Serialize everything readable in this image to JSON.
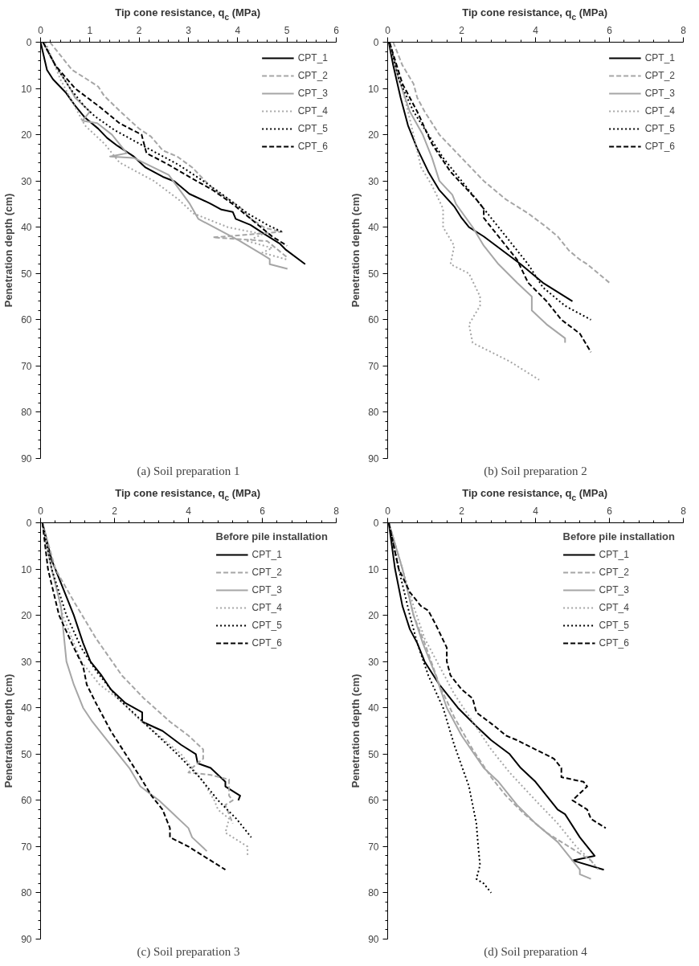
{
  "chart_data": [
    {
      "type": "line",
      "xlabel": "Tip cone resistance, q$_{c}$ (MPa)",
      "ylabel": "Penetration depth (cm)",
      "xlim": [
        0,
        6
      ],
      "xticks": [
        0,
        1,
        2,
        3,
        4,
        5,
        6
      ],
      "ylim": [
        90,
        0
      ],
      "yticks": [
        0,
        10,
        20,
        30,
        40,
        50,
        60,
        70,
        80,
        90
      ],
      "legend": "top right",
      "annotations": [
        "(a) Soil preparation 1"
      ],
      "series": [
        {
          "name": "CPT_1",
          "color": "#000000",
          "line_style": "solid",
          "x": [
            0.0,
            0.13,
            0.25,
            0.52,
            0.7,
            0.9,
            1.17,
            1.35,
            1.56,
            1.89,
            2.13,
            2.48,
            2.72,
            3.02,
            3.43,
            3.67,
            3.9,
            3.96,
            4.26,
            4.56,
            4.86,
            4.98,
            5.37
          ],
          "values": [
            0,
            6,
            8,
            11,
            13.7,
            16.3,
            18.7,
            20.7,
            22.4,
            24.7,
            27.1,
            29.1,
            30.1,
            32.8,
            34.8,
            36.2,
            36.7,
            38.2,
            39.5,
            41.6,
            43.6,
            44.9,
            48
          ]
        },
        {
          "name": "CPT_2",
          "color": "#a6a6a6",
          "line_style": "dashed",
          "x": [
            0.19,
            0.64,
            0.88,
            1.17,
            1.29,
            1.65,
            2.0,
            2.24,
            2.48,
            2.77,
            3.08,
            3.32,
            3.55,
            4.03,
            4.27,
            4.56,
            4.9,
            3.5,
            4.6,
            5.0
          ],
          "values": [
            0,
            6,
            7.6,
            9.6,
            11.6,
            15.3,
            18.7,
            20.4,
            23.4,
            24.7,
            27.1,
            29.8,
            32.1,
            35.5,
            38.2,
            40.2,
            41,
            42.2,
            43,
            46.5
          ]
        },
        {
          "name": "CPT_3",
          "color": "#a6a6a6",
          "line_style": "solid",
          "x": [
            0.05,
            0.3,
            0.6,
            0.7,
            1.0,
            0.85,
            1.15,
            1.45,
            1.75,
            1.41,
            1.89,
            2.6,
            3.02,
            3.2,
            4.03,
            4.5,
            4.65,
            4.65,
            5.01
          ],
          "values": [
            0,
            5,
            10,
            12,
            15,
            17,
            17.5,
            20,
            24,
            24.7,
            25,
            28.7,
            34.8,
            38.2,
            42.9,
            45.9,
            46.9,
            48,
            49
          ]
        },
        {
          "name": "CPT_4",
          "color": "#a6a6a6",
          "line_style": "dotted",
          "x": [
            0.1,
            0.4,
            0.65,
            0.9,
            1.3,
            1.6,
            2.3,
            2.8,
            3.1,
            3.8,
            4.5,
            4.2,
            4.7,
            4.5,
            5.0
          ],
          "values": [
            0,
            8,
            13,
            18,
            22,
            26,
            30,
            34,
            37,
            40,
            41.5,
            43,
            44.5,
            45.5,
            47
          ]
        },
        {
          "name": "CPT_5",
          "color": "#000000",
          "line_style": "dotted",
          "x": [
            0.05,
            0.3,
            0.6,
            0.9,
            1.1,
            1.5,
            2.1,
            2.8,
            3.3,
            3.7,
            4.2,
            4.6,
            4.9
          ],
          "values": [
            0,
            5,
            10,
            14,
            16,
            19,
            22.5,
            26.5,
            30,
            33,
            37,
            39.5,
            41
          ]
        },
        {
          "name": "CPT_6",
          "color": "#000000",
          "line_style": "dashed",
          "x": [
            0.05,
            0.3,
            0.7,
            1.2,
            1.6,
            2.05,
            2.15,
            2.6,
            3.0,
            3.5,
            3.9,
            4.3,
            4.7,
            5.0
          ],
          "values": [
            0,
            5,
            10,
            14,
            17.5,
            20,
            24,
            26.5,
            29,
            32,
            35,
            38.5,
            42,
            44
          ]
        }
      ]
    },
    {
      "type": "line",
      "xlabel": "Tip cone resistance, q$_{c}$ (MPa)",
      "ylabel": "Penetration depth (cm)",
      "xlim": [
        0,
        8
      ],
      "xticks": [
        0,
        2,
        4,
        6,
        8
      ],
      "ylim": [
        90,
        0
      ],
      "yticks": [
        0,
        10,
        20,
        30,
        40,
        50,
        60,
        70,
        80,
        90
      ],
      "legend": "top right",
      "annotations": [
        "(b) Soil preparation 2"
      ],
      "series": [
        {
          "name": "CPT_1",
          "color": "#000000",
          "line_style": "solid",
          "x": [
            0.03,
            0.15,
            0.35,
            0.55,
            0.8,
            1.1,
            1.4,
            1.8,
            2.0,
            2.2,
            2.6,
            3.1,
            3.6,
            4.2,
            5.0
          ],
          "values": [
            0,
            5,
            12,
            18,
            23,
            28,
            32,
            35.5,
            38,
            40,
            42,
            45,
            48,
            52,
            56
          ]
        },
        {
          "name": "CPT_2",
          "color": "#a6a6a6",
          "line_style": "dashed",
          "x": [
            0.15,
            0.4,
            0.7,
            0.8,
            1.0,
            1.4,
            2.0,
            2.6,
            3.2,
            3.8,
            4.3,
            4.6,
            4.9,
            5.2,
            5.4,
            6.0
          ],
          "values": [
            0,
            5,
            9,
            12,
            15,
            20,
            25,
            30,
            34,
            37,
            40,
            42,
            45,
            47,
            48,
            52
          ]
        },
        {
          "name": "CPT_3",
          "color": "#a6a6a6",
          "line_style": "solid",
          "x": [
            0.05,
            0.3,
            0.6,
            0.95,
            1.2,
            1.4,
            1.75,
            1.85,
            2.3,
            2.6,
            3.0,
            3.5,
            3.9,
            3.9,
            4.3,
            4.8,
            4.8
          ],
          "values": [
            0,
            8,
            15,
            20,
            25,
            30,
            33,
            35,
            40,
            44,
            48,
            52,
            55,
            58,
            61,
            64,
            65
          ]
        },
        {
          "name": "CPT_4",
          "color": "#a6a6a6",
          "line_style": "dotted",
          "x": [
            0.05,
            0.4,
            0.7,
            0.9,
            1.2,
            1.5,
            1.5,
            1.8,
            1.7,
            2.2,
            2.5,
            2.5,
            2.2,
            2.3,
            3.3,
            4.1
          ],
          "values": [
            0,
            10,
            20,
            27,
            31,
            36,
            40,
            44,
            48,
            50,
            55,
            57,
            61,
            65,
            69,
            73
          ]
        },
        {
          "name": "CPT_5",
          "color": "#000000",
          "line_style": "dotted",
          "x": [
            0.05,
            0.3,
            0.7,
            1.1,
            1.5,
            2.0,
            2.5,
            3.0,
            3.4,
            3.8,
            4.2,
            4.8,
            5.5
          ],
          "values": [
            0,
            8,
            15,
            20,
            25,
            30,
            35,
            40,
            44,
            48,
            53,
            57,
            60
          ]
        },
        {
          "name": "CPT_6",
          "color": "#000000",
          "line_style": "dashed",
          "x": [
            0.05,
            0.4,
            0.8,
            1.2,
            1.7,
            2.4,
            2.6,
            2.6,
            3.0,
            3.5,
            3.8,
            4.3,
            4.7,
            5.2,
            5.5
          ],
          "values": [
            0,
            9,
            15,
            22,
            28,
            34,
            36,
            38,
            42,
            47,
            52,
            56,
            60,
            63,
            67
          ]
        }
      ]
    },
    {
      "type": "line",
      "xlabel": "Tip cone resistance, q$_{c}$ (MPa)",
      "ylabel": "Penetration depth (cm)",
      "xlim": [
        0,
        8
      ],
      "xticks": [
        0,
        2,
        4,
        6,
        8
      ],
      "ylim": [
        90,
        0
      ],
      "yticks": [
        0,
        10,
        20,
        30,
        40,
        50,
        60,
        70,
        80,
        90
      ],
      "legend": "top right",
      "legend_title": "Before pile installation",
      "annotations": [
        "(c) Soil preparation 3"
      ],
      "series": [
        {
          "name": "CPT_1",
          "color": "#000000",
          "line_style": "solid",
          "x": [
            0.05,
            0.3,
            0.6,
            0.9,
            1.15,
            1.35,
            1.65,
            1.9,
            2.3,
            2.75,
            2.75,
            3.3,
            3.8,
            4.2,
            4.25,
            4.6,
            5.0,
            5.0,
            5.4,
            5.35
          ],
          "values": [
            0,
            8,
            14,
            20,
            26,
            30,
            33,
            36,
            39,
            41,
            43,
            45,
            48,
            50,
            52,
            53,
            56,
            57,
            59,
            60
          ]
        },
        {
          "name": "CPT_2",
          "color": "#a6a6a6",
          "line_style": "dashed",
          "x": [
            0.05,
            0.4,
            0.9,
            1.5,
            2.2,
            2.8,
            3.5,
            4.0,
            4.4,
            4.4,
            4.1,
            4.0,
            4.6,
            5.1,
            5.1,
            5.2,
            5.0,
            5.1,
            5.2
          ],
          "values": [
            0,
            10,
            17,
            25,
            33,
            38,
            43,
            46,
            49,
            51,
            53,
            54,
            54.5,
            55.5,
            59,
            60,
            61,
            63,
            65
          ]
        },
        {
          "name": "CPT_3",
          "color": "#a6a6a6",
          "line_style": "solid",
          "x": [
            0.05,
            0.3,
            0.55,
            0.6,
            0.7,
            0.9,
            1.15,
            1.4,
            1.7,
            2.1,
            2.4,
            2.7,
            3.2,
            3.6,
            4.0,
            4.1,
            4.5
          ],
          "values": [
            0,
            10,
            18,
            22,
            30,
            35,
            40,
            43,
            46,
            50,
            53,
            57,
            60,
            63,
            66,
            68,
            71
          ]
        },
        {
          "name": "CPT_4",
          "color": "#a6a6a6",
          "line_style": "dotted",
          "x": [
            0.05,
            0.3,
            0.6,
            1.1,
            1.6,
            2.1,
            2.6,
            3.2,
            3.8,
            4.1,
            4.4,
            4.7,
            4.8,
            5.1,
            5.0,
            5.6,
            5.6
          ],
          "values": [
            0,
            10,
            20,
            30,
            35,
            38,
            42,
            46,
            50,
            53,
            56,
            60,
            62,
            64,
            67,
            70,
            72
          ]
        },
        {
          "name": "CPT_5",
          "color": "#000000",
          "line_style": "dotted",
          "x": [
            0.05,
            0.3,
            0.7,
            1.1,
            1.5,
            2.1,
            2.9,
            3.7,
            4.3,
            4.8,
            5.3,
            5.7
          ],
          "values": [
            0,
            10,
            20,
            27,
            32,
            38,
            44,
            50,
            55,
            60,
            64,
            68
          ]
        },
        {
          "name": "CPT_6",
          "color": "#000000",
          "line_style": "dashed",
          "x": [
            0.05,
            0.2,
            0.5,
            0.9,
            1.15,
            1.25,
            1.5,
            1.9,
            2.3,
            2.7,
            3.0,
            3.3,
            3.5,
            3.5,
            4.0,
            4.4,
            5.0
          ],
          "values": [
            0,
            10,
            20,
            27,
            31,
            35,
            39,
            45,
            50,
            55,
            59,
            62,
            66,
            68,
            70,
            72,
            75
          ]
        }
      ]
    },
    {
      "type": "line",
      "xlabel": "Tip cone resistance, q$_{c}$ (MPa)",
      "ylabel": "Penetration depth (cm)",
      "xlim": [
        0,
        8
      ],
      "xticks": [
        0,
        2,
        4,
        6,
        8
      ],
      "ylim": [
        90,
        0
      ],
      "yticks": [
        0,
        10,
        20,
        30,
        40,
        50,
        60,
        70,
        80,
        90
      ],
      "legend": "top right",
      "legend_title": "Before pile installation",
      "annotations": [
        "(d) Soil preparation 4"
      ],
      "series": [
        {
          "name": "CPT_1",
          "color": "#000000",
          "line_style": "solid",
          "x": [
            0.03,
            0.2,
            0.4,
            0.6,
            0.8,
            1.0,
            1.4,
            1.9,
            2.4,
            2.8,
            3.3,
            3.6,
            4.0,
            4.3,
            4.6,
            4.8,
            5.2,
            5.5,
            5.6,
            5.0,
            5.85
          ],
          "values": [
            0,
            10,
            18,
            23,
            26,
            30,
            35,
            40,
            44,
            47,
            50,
            53,
            56,
            59,
            62,
            63,
            68,
            71,
            72,
            73,
            75
          ]
        },
        {
          "name": "CPT_2",
          "color": "#a6a6a6",
          "line_style": "dashed",
          "x": [
            0.03,
            0.4,
            0.7,
            1.0,
            1.4,
            1.8,
            2.3,
            2.8,
            3.2,
            3.7,
            4.3,
            4.9,
            5.5,
            5.6
          ],
          "values": [
            0,
            10,
            20,
            26,
            35,
            42,
            49,
            55,
            59,
            63,
            67,
            70,
            73,
            74
          ]
        },
        {
          "name": "CPT_3",
          "color": "#a6a6a6",
          "line_style": "solid",
          "x": [
            0.03,
            0.4,
            0.7,
            0.95,
            1.3,
            1.6,
            2.0,
            2.6,
            3.0,
            3.5,
            4.0,
            4.6,
            5.0,
            5.2,
            5.2,
            5.5
          ],
          "values": [
            0,
            10,
            20,
            26,
            33,
            40,
            46,
            53,
            56,
            61,
            65,
            69,
            73,
            75,
            76,
            77
          ]
        },
        {
          "name": "CPT_4",
          "color": "#a6a6a6",
          "line_style": "dotted",
          "x": [
            0.03,
            0.4,
            0.7,
            1.0,
            1.4,
            1.8,
            2.3,
            2.8,
            3.3,
            4.0,
            4.6,
            5.1,
            5.5,
            5.7
          ],
          "values": [
            0,
            10,
            18,
            25,
            31,
            37,
            43,
            49,
            54,
            60,
            65,
            70,
            73,
            75
          ]
        },
        {
          "name": "CPT_5",
          "color": "#000000",
          "line_style": "dotted",
          "x": [
            0.03,
            0.3,
            0.6,
            0.8,
            1.1,
            1.5,
            1.8,
            2.2,
            2.4,
            2.45,
            2.5,
            2.4,
            2.6,
            2.8
          ],
          "values": [
            0,
            10,
            20,
            26,
            33,
            40,
            48,
            57,
            65,
            70,
            74,
            77,
            78,
            80
          ]
        },
        {
          "name": "CPT_6",
          "color": "#000000",
          "line_style": "dashed",
          "x": [
            0.03,
            0.3,
            0.6,
            0.9,
            1.1,
            1.3,
            1.6,
            1.6,
            1.7,
            2.0,
            2.3,
            2.4,
            2.9,
            3.2,
            3.5,
            4.0,
            4.5,
            4.7,
            4.7,
            5.3,
            5.4,
            5.0,
            5.2,
            5.4,
            5.5,
            5.9
          ],
          "values": [
            0,
            10,
            15,
            18,
            19,
            22,
            27,
            30,
            33,
            36,
            38,
            41,
            44,
            46,
            47,
            49,
            51,
            53,
            55,
            56,
            57,
            60,
            61,
            62,
            64,
            66
          ]
        }
      ]
    }
  ]
}
